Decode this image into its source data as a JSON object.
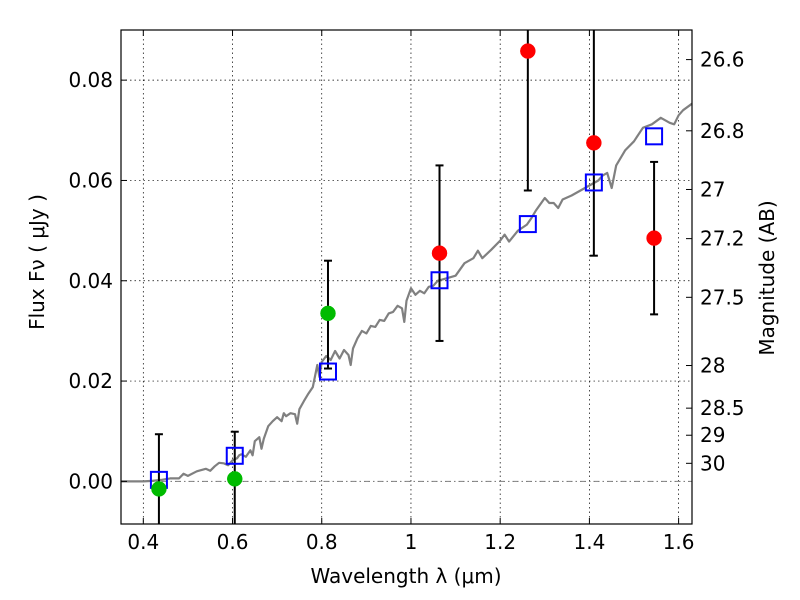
{
  "chart_data": {
    "type": "scatter",
    "xlabel": "Wavelength  λ (μm)",
    "ylabel": "Flux  Fν  ( μJy )",
    "ylabel_right": "Magnitude (AB)",
    "xlim": [
      0.35,
      1.63
    ],
    "ylim": [
      -0.0085,
      0.09
    ],
    "grid": true,
    "x_ticks": [
      0.4,
      0.6,
      0.8,
      1.0,
      1.2,
      1.4,
      1.6
    ],
    "x_tick_labels": [
      "0.4",
      "0.6",
      "0.8",
      "1",
      "1.2",
      "1.4",
      "1.6"
    ],
    "y_ticks": [
      0.0,
      0.02,
      0.04,
      0.06,
      0.08
    ],
    "y_tick_labels": [
      "0.00",
      "0.02",
      "0.04",
      "0.06",
      "0.08"
    ],
    "mag_ticks": [
      {
        "label": "26.6",
        "flux": 0.0841
      },
      {
        "label": "26.8",
        "flux": 0.0699
      },
      {
        "label": "27",
        "flux": 0.0582
      },
      {
        "label": "27.2",
        "flux": 0.0484
      },
      {
        "label": "27.5",
        "flux": 0.0367
      },
      {
        "label": "28",
        "flux": 0.0231
      },
      {
        "label": "28.5",
        "flux": 0.0146
      },
      {
        "label": "29",
        "flux": 0.0092
      },
      {
        "label": "30",
        "flux": 0.0036
      }
    ],
    "model_spectrum": {
      "color": "#808080",
      "points": [
        [
          0.35,
          0.0
        ],
        [
          0.4,
          0.0
        ],
        [
          0.42,
          0.0001
        ],
        [
          0.44,
          0.0003
        ],
        [
          0.46,
          0.0006
        ],
        [
          0.48,
          0.0006
        ],
        [
          0.49,
          0.0015
        ],
        [
          0.5,
          0.0011
        ],
        [
          0.52,
          0.002
        ],
        [
          0.54,
          0.0025
        ],
        [
          0.55,
          0.0021
        ],
        [
          0.56,
          0.003
        ],
        [
          0.57,
          0.0037
        ],
        [
          0.58,
          0.0036
        ],
        [
          0.59,
          0.0032
        ],
        [
          0.6,
          0.0042
        ],
        [
          0.61,
          0.0046
        ],
        [
          0.615,
          0.0052
        ],
        [
          0.62,
          0.0054
        ],
        [
          0.63,
          0.0049
        ],
        [
          0.64,
          0.0062
        ],
        [
          0.645,
          0.0052
        ],
        [
          0.65,
          0.008
        ],
        [
          0.66,
          0.0088
        ],
        [
          0.665,
          0.0065
        ],
        [
          0.67,
          0.0085
        ],
        [
          0.68,
          0.011
        ],
        [
          0.69,
          0.012
        ],
        [
          0.7,
          0.0128
        ],
        [
          0.71,
          0.012
        ],
        [
          0.715,
          0.0136
        ],
        [
          0.72,
          0.013
        ],
        [
          0.73,
          0.0136
        ],
        [
          0.74,
          0.0134
        ],
        [
          0.745,
          0.0115
        ],
        [
          0.75,
          0.0144
        ],
        [
          0.76,
          0.016
        ],
        [
          0.77,
          0.0175
        ],
        [
          0.78,
          0.0188
        ],
        [
          0.79,
          0.0232
        ],
        [
          0.795,
          0.0208
        ],
        [
          0.8,
          0.0238
        ],
        [
          0.81,
          0.025
        ],
        [
          0.82,
          0.0242
        ],
        [
          0.83,
          0.026
        ],
        [
          0.84,
          0.0245
        ],
        [
          0.85,
          0.0262
        ],
        [
          0.86,
          0.0252
        ],
        [
          0.865,
          0.0232
        ],
        [
          0.87,
          0.0265
        ],
        [
          0.88,
          0.0285
        ],
        [
          0.89,
          0.03
        ],
        [
          0.9,
          0.0295
        ],
        [
          0.91,
          0.031
        ],
        [
          0.92,
          0.0308
        ],
        [
          0.93,
          0.0322
        ],
        [
          0.94,
          0.032
        ],
        [
          0.95,
          0.0335
        ],
        [
          0.96,
          0.0338
        ],
        [
          0.97,
          0.035
        ],
        [
          0.98,
          0.0345
        ],
        [
          0.985,
          0.0318
        ],
        [
          0.99,
          0.036
        ],
        [
          1.0,
          0.0385
        ],
        [
          1.01,
          0.0372
        ],
        [
          1.02,
          0.038
        ],
        [
          1.03,
          0.0375
        ],
        [
          1.04,
          0.0388
        ],
        [
          1.05,
          0.039
        ],
        [
          1.06,
          0.04
        ],
        [
          1.08,
          0.0405
        ],
        [
          1.1,
          0.041
        ],
        [
          1.12,
          0.0435
        ],
        [
          1.14,
          0.0445
        ],
        [
          1.15,
          0.046
        ],
        [
          1.16,
          0.0445
        ],
        [
          1.18,
          0.0462
        ],
        [
          1.2,
          0.048
        ],
        [
          1.21,
          0.0492
        ],
        [
          1.22,
          0.0478
        ],
        [
          1.24,
          0.05
        ],
        [
          1.26,
          0.0512
        ],
        [
          1.27,
          0.0525
        ],
        [
          1.28,
          0.054
        ],
        [
          1.3,
          0.0565
        ],
        [
          1.31,
          0.0555
        ],
        [
          1.32,
          0.0555
        ],
        [
          1.33,
          0.0545
        ],
        [
          1.34,
          0.0562
        ],
        [
          1.36,
          0.057
        ],
        [
          1.38,
          0.058
        ],
        [
          1.4,
          0.059
        ],
        [
          1.42,
          0.06
        ],
        [
          1.43,
          0.061
        ],
        [
          1.44,
          0.0615
        ],
        [
          1.45,
          0.0585
        ],
        [
          1.46,
          0.063
        ],
        [
          1.48,
          0.066
        ],
        [
          1.5,
          0.0678
        ],
        [
          1.52,
          0.0705
        ],
        [
          1.54,
          0.0712
        ],
        [
          1.56,
          0.0725
        ],
        [
          1.58,
          0.0715
        ],
        [
          1.59,
          0.0712
        ],
        [
          1.6,
          0.073
        ],
        [
          1.61,
          0.074
        ],
        [
          1.63,
          0.0753
        ]
      ]
    },
    "model_bands": {
      "color": "#0000ff",
      "marker": "open-square",
      "points": [
        [
          0.435,
          0.0003
        ],
        [
          0.605,
          0.0051
        ],
        [
          0.814,
          0.0219
        ],
        [
          1.064,
          0.0401
        ],
        [
          1.262,
          0.0513
        ],
        [
          1.41,
          0.0596
        ],
        [
          1.545,
          0.0688
        ]
      ]
    },
    "observations": [
      {
        "x": 0.435,
        "y": -0.0015,
        "yerr_low": 0.0085,
        "yerr_high": 0.0109,
        "color": "#00bb00"
      },
      {
        "x": 0.605,
        "y": 0.0005,
        "yerr_low": 0.0095,
        "yerr_high": 0.0094,
        "color": "#00bb00"
      },
      {
        "x": 0.814,
        "y": 0.0335,
        "yerr_low": 0.011,
        "yerr_high": 0.0105,
        "color": "#00bb00"
      },
      {
        "x": 1.064,
        "y": 0.0455,
        "yerr_low": 0.0175,
        "yerr_high": 0.0175,
        "color": "#ff0000"
      },
      {
        "x": 1.262,
        "y": 0.0858,
        "yerr_low": 0.0278,
        "yerr_high": 0.0042,
        "color": "#ff0000"
      },
      {
        "x": 1.41,
        "y": 0.0675,
        "yerr_low": 0.0225,
        "yerr_high": 0.0225,
        "color": "#ff0000"
      },
      {
        "x": 1.545,
        "y": 0.0485,
        "yerr_low": 0.0152,
        "yerr_high": 0.0152,
        "color": "#ff0000"
      }
    ],
    "zero_line": {
      "y": 0.0,
      "style": "dashdot",
      "color": "#808080"
    }
  }
}
